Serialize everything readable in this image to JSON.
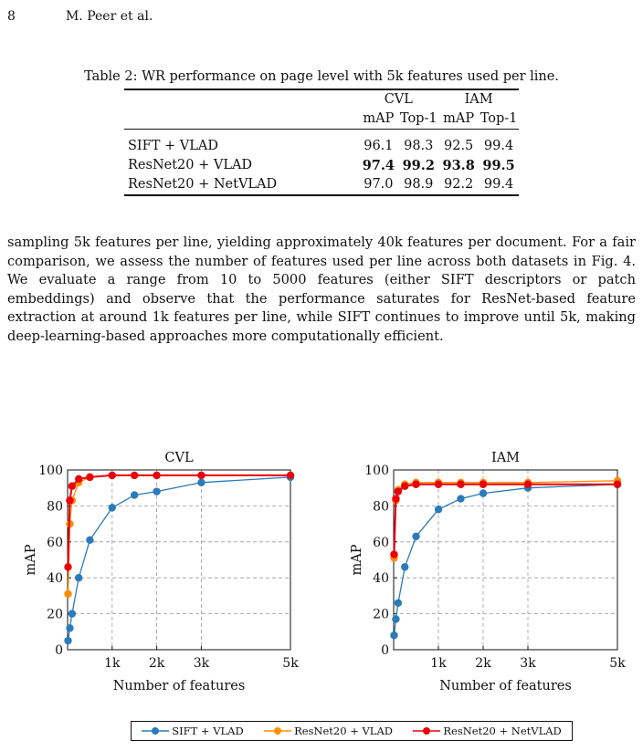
{
  "header": {
    "page_number": "8",
    "authors": "M. Peer et al."
  },
  "table": {
    "caption": "Table 2: WR performance on page level with 5k features used per line.",
    "groups": [
      "CVL",
      "IAM"
    ],
    "columns": [
      "mAP",
      "Top-1",
      "mAP",
      "Top-1"
    ],
    "rows": [
      {
        "method": "SIFT + VLAD",
        "values": [
          "96.1",
          "98.3",
          "92.5",
          "99.4"
        ],
        "bold": false
      },
      {
        "method": "ResNet20 + VLAD",
        "values": [
          "97.4",
          "99.2",
          "93.8",
          "99.5"
        ],
        "bold": true
      },
      {
        "method": "ResNet20 + NetVLAD",
        "values": [
          "97.0",
          "98.9",
          "92.2",
          "99.4"
        ],
        "bold": false
      }
    ]
  },
  "paragraph": "sampling 5k features per line, yielding approximately 40k features per document. For a fair comparison, we assess the number of features used per line across both datasets in Fig. 4. We evaluate a range from 10 to 5000 features (either SIFT descriptors or patch embeddings) and observe that the performance saturates for ResNet-based feature extraction at around 1k features per line, while SIFT continues to improve until 5k, making deep-learning-based approaches more computationally efficient.",
  "chart_data": [
    {
      "type": "line",
      "title": "CVL",
      "xlabel": "Number of features",
      "ylabel": "mAP",
      "xlim": [
        0,
        5000
      ],
      "ylim": [
        0,
        100
      ],
      "xticks": [
        {
          "value": 1000,
          "label": "1k"
        },
        {
          "value": 2000,
          "label": "2k"
        },
        {
          "value": 3000,
          "label": "3k"
        },
        {
          "value": 5000,
          "label": "5k"
        }
      ],
      "yticks": [
        0,
        20,
        40,
        60,
        80,
        100
      ],
      "grid": true,
      "series": [
        {
          "name": "SIFT + VLAD",
          "color": "#2b7bb9",
          "x": [
            10,
            50,
            100,
            250,
            500,
            1000,
            1500,
            2000,
            3000,
            5000
          ],
          "y": [
            5,
            12,
            20,
            40,
            61,
            79,
            86,
            88,
            93,
            96
          ]
        },
        {
          "name": "ResNet20 + VLAD",
          "color": "#ff8c00",
          "x": [
            10,
            50,
            100,
            250,
            500,
            1000,
            1500,
            2000,
            3000,
            5000
          ],
          "y": [
            31,
            70,
            83,
            93,
            96,
            97,
            97,
            97,
            97,
            97
          ]
        },
        {
          "name": "ResNet20 + NetVLAD",
          "color": "#e8000b",
          "x": [
            10,
            50,
            100,
            250,
            500,
            1000,
            1500,
            2000,
            3000,
            5000
          ],
          "y": [
            46,
            83,
            91,
            95,
            96,
            97,
            97,
            97,
            97,
            97
          ]
        }
      ]
    },
    {
      "type": "line",
      "title": "IAM",
      "xlabel": "Number of features",
      "ylabel": "mAP",
      "xlim": [
        0,
        5000
      ],
      "ylim": [
        0,
        100
      ],
      "xticks": [
        {
          "value": 1000,
          "label": "1k"
        },
        {
          "value": 2000,
          "label": "2k"
        },
        {
          "value": 3000,
          "label": "3k"
        },
        {
          "value": 5000,
          "label": "5k"
        }
      ],
      "yticks": [
        0,
        20,
        40,
        60,
        80,
        100
      ],
      "grid": true,
      "series": [
        {
          "name": "SIFT + VLAD",
          "color": "#2b7bb9",
          "x": [
            10,
            50,
            100,
            250,
            500,
            1000,
            1500,
            2000,
            3000,
            5000
          ],
          "y": [
            8,
            17,
            26,
            46,
            63,
            78,
            84,
            87,
            90,
            92
          ]
        },
        {
          "name": "ResNet20 + VLAD",
          "color": "#ff8c00",
          "x": [
            10,
            50,
            100,
            250,
            500,
            1000,
            1500,
            2000,
            3000,
            5000
          ],
          "y": [
            51,
            83,
            89,
            92,
            93,
            93,
            93,
            93,
            93,
            94
          ]
        },
        {
          "name": "ResNet20 + NetVLAD",
          "color": "#e8000b",
          "x": [
            10,
            50,
            100,
            250,
            500,
            1000,
            1500,
            2000,
            3000,
            5000
          ],
          "y": [
            53,
            84,
            88,
            91,
            92,
            92,
            92,
            92,
            92,
            92
          ]
        }
      ]
    }
  ],
  "legend": {
    "position": "bottom-center",
    "entries": [
      {
        "label": "SIFT + VLAD",
        "color": "#2b7bb9"
      },
      {
        "label": "ResNet20 + VLAD",
        "color": "#ff8c00"
      },
      {
        "label": "ResNet20 + NetVLAD",
        "color": "#e8000b"
      }
    ]
  }
}
